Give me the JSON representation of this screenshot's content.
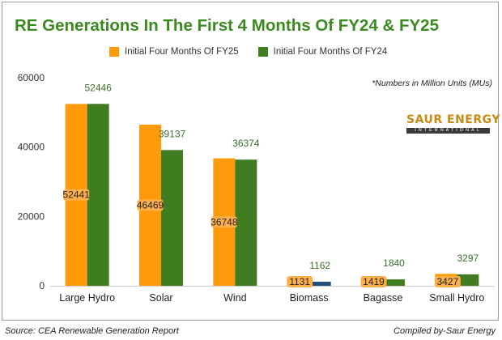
{
  "chart_data": {
    "type": "bar",
    "title": "RE Generations In The First 4 Months Of FY24 & FY25",
    "categories": [
      "Large Hydro",
      "Solar",
      "Wind",
      "Biomass",
      "Bagasse",
      "Small Hydro"
    ],
    "series": [
      {
        "name": "Initial Four Months Of FY25",
        "color": "#ff9a0a",
        "values": [
          52441,
          46469,
          36748,
          1131,
          1419,
          3427
        ]
      },
      {
        "name": "Initial Four Months Of FY24",
        "color": "#3f7d20",
        "values": [
          52446,
          39137,
          36374,
          1162,
          1840,
          3297
        ]
      }
    ],
    "bar_colors_series2": [
      "#3f7d20",
      "#3f7d20",
      "#3f7d20",
      "#1f4e79",
      "#3f7d20",
      "#3f7d20"
    ],
    "data_labels_series1": [
      "52441",
      "46469",
      "36748",
      "1131",
      "1419",
      "3427"
    ],
    "data_labels_series2": [
      "52446",
      "39137",
      "36374",
      "1162",
      "1840",
      "3297"
    ],
    "yticks": [
      0,
      20000,
      40000,
      60000
    ],
    "ytick_labels": [
      "0",
      "20000",
      "40000",
      "60000"
    ],
    "ylim": [
      0,
      60000
    ],
    "xlabel": "",
    "ylabel": "",
    "legend_position": "top",
    "grid": false
  },
  "note": "*Numbers in Million Units (MUs)",
  "brand": {
    "name": "SAUR ENERGY",
    "sub": "INTERNATIONAL"
  },
  "footer": {
    "source": "Source: CEA Renewable Generation Report",
    "credit": "Compiled by-Saur Energy"
  },
  "colors": {
    "title": "#3a8a1f",
    "fy25": "#ff9a0a",
    "fy24": "#3f7d20"
  }
}
